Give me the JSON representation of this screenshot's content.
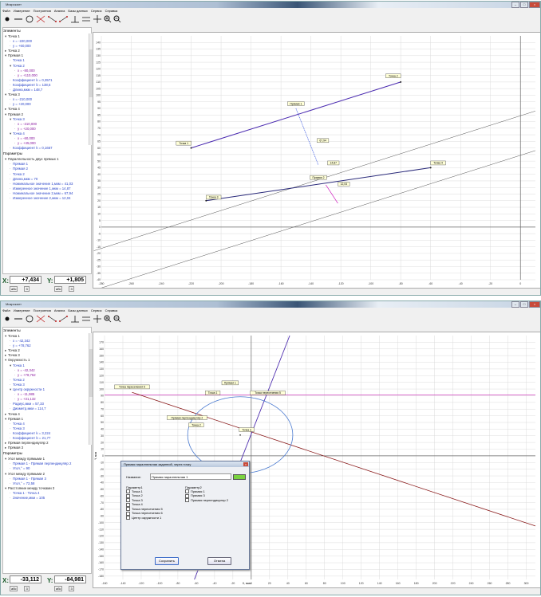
{
  "app_title": "Микрокалт",
  "menu": [
    "Файл",
    "Измерение",
    "Построения",
    "Анализ",
    "Базы данных",
    "Сервис",
    "Справка"
  ],
  "toolbar_icons": [
    "point-tool-icon",
    "line-tool-icon",
    "circle-tool-icon",
    "intersection-tool-icon",
    "points-tool-icon",
    "points2-tool-icon",
    "perpendicular-tool-icon",
    "parallel-tool-icon",
    "cross-tool-icon",
    "zoom-in-icon",
    "zoom-out-icon"
  ],
  "win1": {
    "elements_header": "Элементы",
    "tree": [
      {
        "t": "Точка 1",
        "c": "blk",
        "i": 0,
        "g": "▾"
      },
      {
        "t": "x = -220,000",
        "c": "blue",
        "i": 1
      },
      {
        "t": "y = +60,000",
        "c": "blue",
        "i": 1
      },
      {
        "t": "Точка 2",
        "c": "blk",
        "i": 0,
        "g": "▸"
      },
      {
        "t": "Прямая 1",
        "c": "blk",
        "i": 0,
        "g": "▾"
      },
      {
        "t": "Точка 1",
        "c": "blue",
        "i": 1
      },
      {
        "t": "Точка 2",
        "c": "blue",
        "i": 1,
        "g": "▾"
      },
      {
        "t": "x = -80,000",
        "c": "pur",
        "i": 2
      },
      {
        "t": "y = +110,000",
        "c": "pur",
        "i": 2
      },
      {
        "t": "Коэффициент k = 0,3571",
        "c": "blue",
        "i": 1
      },
      {
        "t": "Коэффициент b = 138,6",
        "c": "blue",
        "i": 1
      },
      {
        "t": "Длина,мкм = 148,7",
        "c": "blue",
        "i": 1
      },
      {
        "t": "Точка 3",
        "c": "blk",
        "i": 0,
        "g": "▾"
      },
      {
        "t": "x = -210,000",
        "c": "blue",
        "i": 1
      },
      {
        "t": "y = +20,000",
        "c": "blue",
        "i": 1
      },
      {
        "t": "Точка 4",
        "c": "blk",
        "i": 0,
        "g": "▸"
      },
      {
        "t": "Прямая 2",
        "c": "blk",
        "i": 0,
        "g": "▾"
      },
      {
        "t": "Точка 3",
        "c": "blue",
        "i": 1,
        "g": "▾"
      },
      {
        "t": "x = -210,000",
        "c": "pur",
        "i": 2
      },
      {
        "t": "y = +20,000",
        "c": "pur",
        "i": 2
      },
      {
        "t": "Точка 4",
        "c": "blue",
        "i": 1,
        "g": "▾"
      },
      {
        "t": "x = -60,000",
        "c": "pur",
        "i": 2
      },
      {
        "t": "y = +45,000",
        "c": "pur",
        "i": 2
      },
      {
        "t": "Коэффициент k = 0,1667",
        "c": "blue",
        "i": 1
      }
    ],
    "params_header": "Параметры",
    "params": [
      {
        "t": "Параллельность двух прямых 1",
        "c": "blk",
        "i": 0,
        "g": "▾"
      },
      {
        "t": "Прямая 1",
        "c": "blue",
        "i": 1
      },
      {
        "t": "Прямая 2",
        "c": "blue",
        "i": 1
      },
      {
        "t": "Точка 2",
        "c": "blue",
        "i": 1
      },
      {
        "t": "Длина,мкм = 70",
        "c": "blue",
        "i": 1
      },
      {
        "t": "Номинальное значение 1,мкм = 41,03",
        "c": "blue",
        "i": 1
      },
      {
        "t": "Измеренное значение 1,мкм = 14,87",
        "c": "blue",
        "i": 1
      },
      {
        "t": "Номинальное значение 2,мкм = 67,94",
        "c": "blue",
        "i": 1
      },
      {
        "t": "Измеренное значение 2,мкм = 12,04",
        "c": "blue",
        "i": 1
      }
    ],
    "x_label": "X:",
    "x_value": "+7,434",
    "y_label": "Y:",
    "y_value": "+1,805",
    "x_sub": [
      "абс",
      "3"
    ],
    "y_sub": [
      "абс",
      "3"
    ],
    "chart_data": {
      "type": "scatter",
      "xlim": [
        -280,
        10
      ],
      "ylim": [
        -40,
        145
      ],
      "x_ticks": [
        -280,
        -260,
        -240,
        -220,
        -200,
        -180,
        -160,
        -140,
        -120,
        -100,
        -80,
        -60,
        -40,
        -20,
        0
      ],
      "y_ticks": [
        -40,
        -35,
        -30,
        -25,
        -20,
        -15,
        -10,
        -5,
        0,
        5,
        10,
        15,
        20,
        25,
        30,
        35,
        40,
        45,
        50,
        55,
        60,
        65,
        70,
        75,
        80,
        85,
        90,
        95,
        100,
        105,
        110,
        115,
        120,
        125,
        130,
        135,
        140
      ],
      "points": [
        {
          "name": "Точка 1",
          "x": -220,
          "y": 60
        },
        {
          "name": "Точка 2",
          "x": -80,
          "y": 110
        },
        {
          "name": "Точка 3",
          "x": -210,
          "y": 20
        },
        {
          "name": "Точка 4",
          "x": -60,
          "y": 45
        }
      ],
      "labels": [
        {
          "text": "Точка 1",
          "x": -225,
          "y": 63
        },
        {
          "text": "Точка 2",
          "x": -85,
          "y": 114
        },
        {
          "text": "Точка 3",
          "x": -205,
          "y": 22
        },
        {
          "text": "Точка 4",
          "x": -55,
          "y": 48
        },
        {
          "text": "Прямая 1",
          "x": -150,
          "y": 93
        },
        {
          "text": "Прямая 2",
          "x": -135,
          "y": 37
        },
        {
          "text": "67,94",
          "x": -132,
          "y": 65
        },
        {
          "text": "14,87",
          "x": -125,
          "y": 48
        },
        {
          "text": "12,04",
          "x": -118,
          "y": 32
        }
      ]
    }
  },
  "win2": {
    "elements_header": "Элементы",
    "tree": [
      {
        "t": "Точка 1",
        "c": "blk",
        "i": 0,
        "g": "▾"
      },
      {
        "t": "x = -42,342",
        "c": "blue",
        "i": 1
      },
      {
        "t": "y = +78,762",
        "c": "blue",
        "i": 1
      },
      {
        "t": "Точка 2",
        "c": "blk",
        "i": 0,
        "g": "▸"
      },
      {
        "t": "Точка 3",
        "c": "blk",
        "i": 0,
        "g": "▸"
      },
      {
        "t": "Окружность 1",
        "c": "blk",
        "i": 0,
        "g": "▾"
      },
      {
        "t": "Точка 1",
        "c": "blue",
        "i": 1,
        "g": "▾"
      },
      {
        "t": "x = -42,342",
        "c": "pur",
        "i": 2
      },
      {
        "t": "y = +78,762",
        "c": "pur",
        "i": 2
      },
      {
        "t": "Точка 2",
        "c": "blue",
        "i": 1
      },
      {
        "t": "Точка 3",
        "c": "blue",
        "i": 1
      },
      {
        "t": "Центр окружности 1",
        "c": "blue",
        "i": 1,
        "g": "▾"
      },
      {
        "t": "x = -11,985",
        "c": "pur",
        "i": 2
      },
      {
        "t": "y = +31,132",
        "c": "pur",
        "i": 2
      },
      {
        "t": "Радиус,мкм = 57,33",
        "c": "blue",
        "i": 1
      },
      {
        "t": "Диаметр,мкм = 114,7",
        "c": "blue",
        "i": 1
      },
      {
        "t": "Точка 4",
        "c": "blk",
        "i": 0,
        "g": "▸"
      },
      {
        "t": "Прямая 1",
        "c": "blk",
        "i": 0,
        "g": "▾"
      },
      {
        "t": "Точка 4",
        "c": "blue",
        "i": 1
      },
      {
        "t": "Точка 3",
        "c": "blue",
        "i": 1
      },
      {
        "t": "Коэффициент k = 3,224",
        "c": "blue",
        "i": 1
      },
      {
        "t": "Коэффициент b = 21,77",
        "c": "blue",
        "i": 1
      },
      {
        "t": "Прямая перпендикуляр 2",
        "c": "blk",
        "i": 0,
        "g": "▸"
      },
      {
        "t": "Прямая 3",
        "c": "blk",
        "i": 0,
        "g": "▸"
      }
    ],
    "params_header": "Параметры",
    "params": [
      {
        "t": "Угол между прямыми 1",
        "c": "blk",
        "i": 0,
        "g": "▾"
      },
      {
        "t": "Прямая 1 - Прямая перпендикуляр 2",
        "c": "blue",
        "i": 1
      },
      {
        "t": "Угол,° = 90",
        "c": "blue",
        "i": 1
      },
      {
        "t": "Угол между прямыми 2",
        "c": "blk",
        "i": 0,
        "g": "▾"
      },
      {
        "t": "Прямая 1 - Прямая 3",
        "c": "blue",
        "i": 1
      },
      {
        "t": "Угол,° = 72,58",
        "c": "blue",
        "i": 1
      },
      {
        "t": "Расстояние между точками 3",
        "c": "blk",
        "i": 0,
        "g": "▾"
      },
      {
        "t": "Точка 1 - Точка 4",
        "c": "blue",
        "i": 1
      },
      {
        "t": "Значение,мкм = 105",
        "c": "blue",
        "i": 1
      }
    ],
    "x_label": "X:",
    "x_value": "-33,112",
    "y_label": "Y:",
    "y_value": "-84,981",
    "x_sub": [
      "абс",
      "3"
    ],
    "y_sub": [
      "абс",
      "3"
    ],
    "dialog": {
      "title": "Прямая параллельная заданной, через точку",
      "name_label": "Название:",
      "name_value": "Прямая параллельная 1",
      "swatch_color": "#7ad33f",
      "param1_header": "Параметр1",
      "param1": [
        "Точка 1",
        "Точка 2",
        "Точка 3",
        "Точка 4",
        "Точка пересечения 5",
        "Точка пересечения 6",
        "Центр окружности 1"
      ],
      "param2_header": "Параметр2",
      "param2": [
        "Прямая 1",
        "Прямая 3",
        "Прямая перпендикуляр 2"
      ],
      "save": "Сохранить",
      "cancel": "Отмена"
    },
    "chart_data": {
      "type": "scatter",
      "xlim": [
        -160,
        310
      ],
      "ylim": [
        -185,
        180
      ],
      "x_ticks": [
        -160,
        -140,
        -120,
        -100,
        -80,
        -60,
        -40,
        -20,
        0,
        20,
        40,
        60,
        80,
        100,
        120,
        140,
        160,
        180,
        200,
        220,
        240,
        260,
        280,
        300
      ],
      "y_ticks": [
        -180,
        -170,
        -160,
        -150,
        -140,
        -130,
        -120,
        -110,
        -100,
        -90,
        -80,
        -70,
        -60,
        -50,
        -40,
        -30,
        -20,
        -10,
        0,
        10,
        20,
        30,
        40,
        50,
        60,
        70,
        80,
        90,
        100,
        110,
        120,
        130,
        140,
        150,
        160,
        170
      ],
      "xlabel": "X, мкм",
      "ylabel": "Y, мкм",
      "circle": {
        "cx": -11.985,
        "cy": 31.132,
        "r": 57.33
      },
      "labels": [
        {
          "text": "Точка пересечения 6",
          "x": -130,
          "y": 102
        },
        {
          "text": "Точка 1",
          "x": -42,
          "y": 93
        },
        {
          "text": "Прямая 1",
          "x": -23,
          "y": 108
        },
        {
          "text": "Точка пересечения 5",
          "x": 18,
          "y": 93
        },
        {
          "text": "Прямая перпендикуляр 2",
          "x": -70,
          "y": 56
        },
        {
          "text": "Точка 2",
          "x": -60,
          "y": 45
        },
        {
          "text": "Точка 3",
          "x": -5,
          "y": 38
        },
        {
          "text": "Точка 4",
          "x": -35,
          "y": -98
        }
      ]
    }
  }
}
